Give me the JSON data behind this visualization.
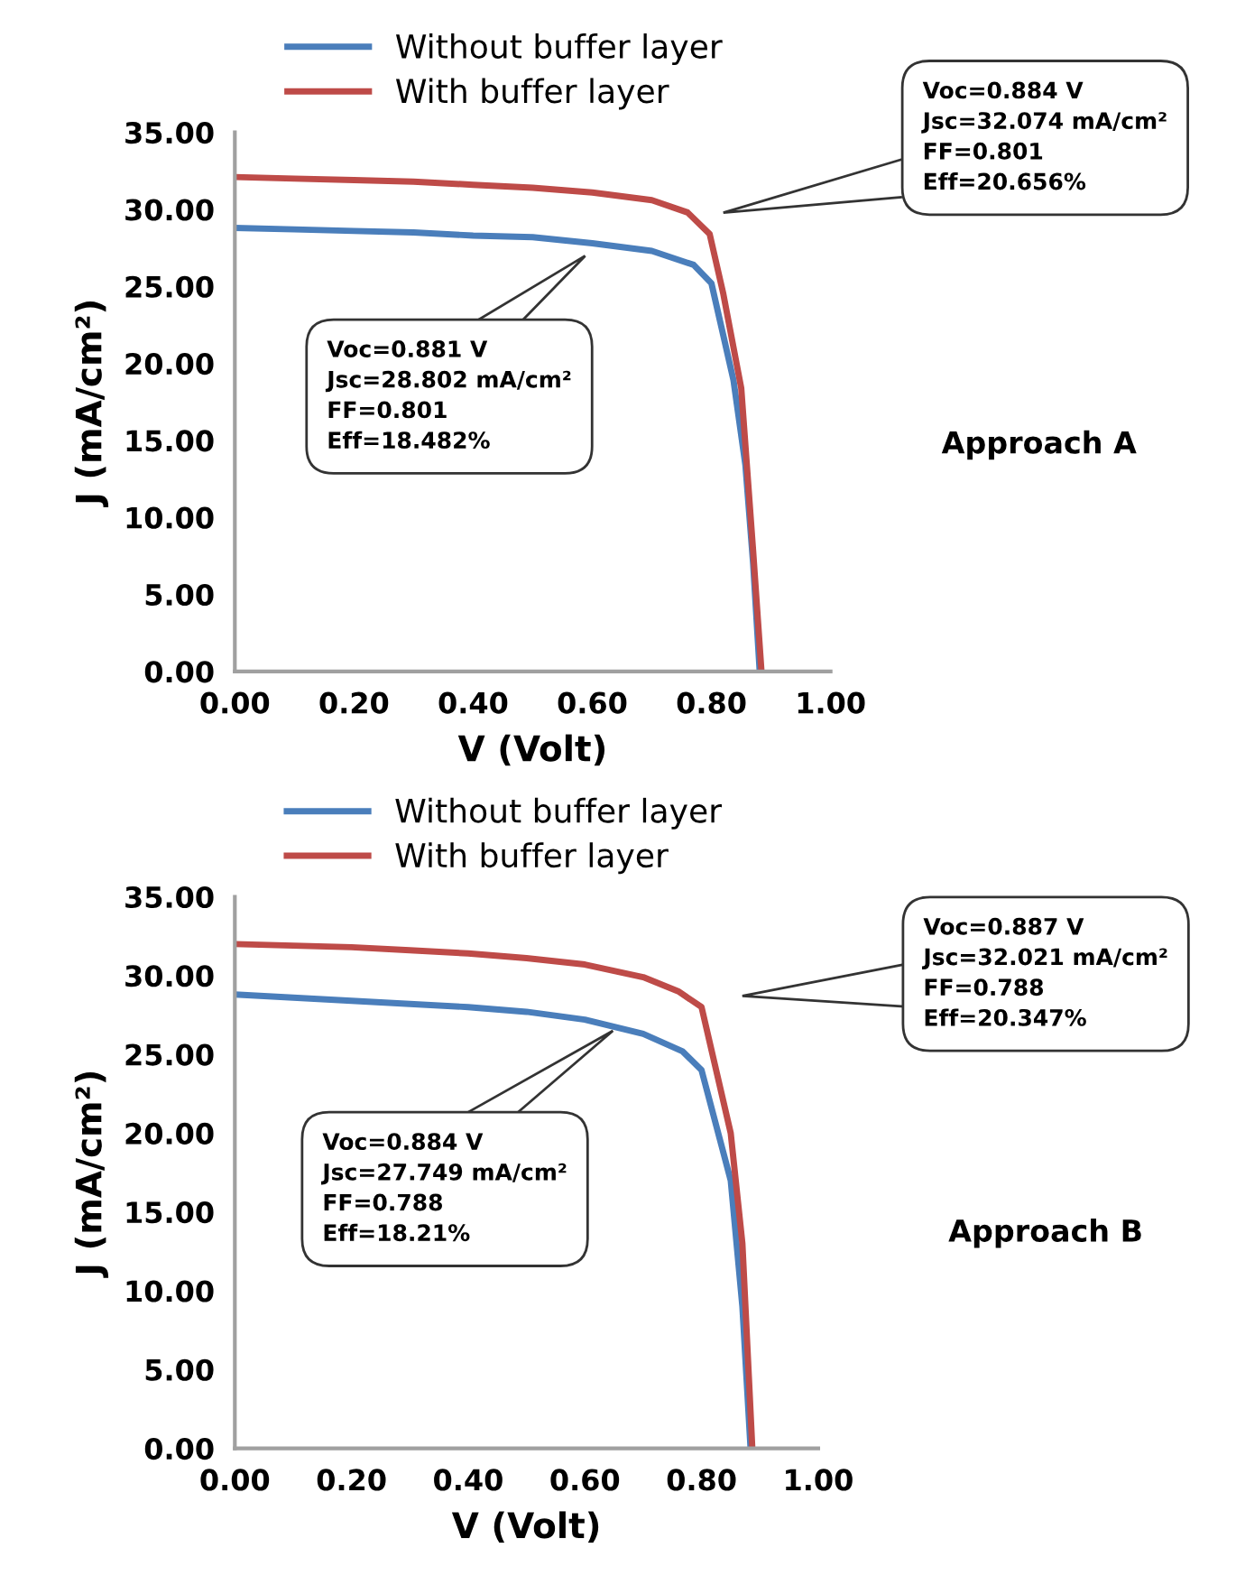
{
  "chart_data": [
    {
      "type": "line",
      "xlabel": "V (Volt)",
      "ylabel": "J (mA/cm²)",
      "legend": "top",
      "grid": false,
      "marker": "none",
      "line_style": "solid",
      "xlim": [
        0,
        1
      ],
      "ylim": [
        0,
        35
      ],
      "xticks": [
        {
          "value": 0,
          "label": "0.00"
        },
        {
          "value": 0.2,
          "label": "0.20"
        },
        {
          "value": 0.4,
          "label": "0.40"
        },
        {
          "value": 0.6,
          "label": "0.60"
        },
        {
          "value": 0.8,
          "label": "0.80"
        },
        {
          "value": 1,
          "label": "1.00"
        }
      ],
      "yticks": [
        {
          "value": 0,
          "label": "0.00"
        },
        {
          "value": 5,
          "label": "5.00"
        },
        {
          "value": 10,
          "label": "10.00"
        },
        {
          "value": 15,
          "label": "15.00"
        },
        {
          "value": 20,
          "label": "20.00"
        },
        {
          "value": 25,
          "label": "25.00"
        },
        {
          "value": 30,
          "label": "30.00"
        },
        {
          "value": 35,
          "label": "35.00"
        }
      ],
      "series": [
        {
          "name": "Without buffer layer",
          "color": "#4a7ebb",
          "x": [
            0,
            0.1,
            0.2,
            0.3,
            0.4,
            0.5,
            0.6,
            0.7,
            0.77,
            0.8,
            0.837,
            0.857,
            0.87,
            0.881
          ],
          "values": [
            28.8,
            28.7,
            28.6,
            28.5,
            28.3,
            28.2,
            27.8,
            27.3,
            26.4,
            25.2,
            18.9,
            13.4,
            7,
            0
          ]
        },
        {
          "name": "With buffer layer",
          "color": "#be4b48",
          "x": [
            0,
            0.1,
            0.2,
            0.3,
            0.4,
            0.5,
            0.6,
            0.7,
            0.76,
            0.797,
            0.82,
            0.85,
            0.87,
            0.884
          ],
          "values": [
            32.1,
            32.0,
            31.9,
            31.8,
            31.6,
            31.4,
            31.1,
            30.6,
            29.8,
            28.4,
            24.5,
            18.4,
            7.8,
            0
          ]
        }
      ],
      "annotations": [
        "Voc=0.881 V\nJsc=28.802 mA/cm²\nFF=0.801\nEff=18.482%",
        "Voc=0.884 V\nJsc=32.074 mA/cm²\nFF=0.801\nEff=20.656%",
        "Approach A"
      ]
    },
    {
      "type": "line",
      "xlabel": "V (Volt)",
      "ylabel": "J (mA/cm²)",
      "legend": "top",
      "grid": false,
      "marker": "none",
      "line_style": "solid",
      "xlim": [
        0,
        1
      ],
      "ylim": [
        0,
        35
      ],
      "xticks": [
        {
          "value": 0,
          "label": "0.00"
        },
        {
          "value": 0.2,
          "label": "0.20"
        },
        {
          "value": 0.4,
          "label": "0.40"
        },
        {
          "value": 0.6,
          "label": "0.60"
        },
        {
          "value": 0.8,
          "label": "0.80"
        },
        {
          "value": 1,
          "label": "1.00"
        }
      ],
      "yticks": [
        {
          "value": 0,
          "label": "0.00"
        },
        {
          "value": 5,
          "label": "5.00"
        },
        {
          "value": 10,
          "label": "10.00"
        },
        {
          "value": 15,
          "label": "15.00"
        },
        {
          "value": 20,
          "label": "20.00"
        },
        {
          "value": 25,
          "label": "25.00"
        },
        {
          "value": 30,
          "label": "30.00"
        },
        {
          "value": 35,
          "label": "35.00"
        }
      ],
      "series": [
        {
          "name": "Without buffer layer",
          "color": "#4a7ebb",
          "x": [
            0,
            0.1,
            0.2,
            0.3,
            0.4,
            0.5,
            0.6,
            0.7,
            0.767,
            0.8,
            0.85,
            0.87,
            0.884
          ],
          "values": [
            28.8,
            28.6,
            28.4,
            28.2,
            28.0,
            27.7,
            27.2,
            26.3,
            25.2,
            24.0,
            17.0,
            9,
            0
          ]
        },
        {
          "name": "With buffer layer",
          "color": "#be4b48",
          "x": [
            0,
            0.1,
            0.2,
            0.3,
            0.4,
            0.5,
            0.6,
            0.7,
            0.76,
            0.8,
            0.85,
            0.87,
            0.887
          ],
          "values": [
            32.0,
            31.9,
            31.8,
            31.6,
            31.4,
            31.1,
            30.7,
            29.9,
            29.0,
            28.0,
            20.0,
            13.0,
            0
          ]
        }
      ],
      "annotations": [
        "Voc=0.884 V\nJsc=27.749 mA/cm²\nFF=0.788\nEff=18.21%",
        "Voc=0.887 V\nJsc=32.021 mA/cm²\nFF=0.788\nEff=20.347%",
        "Approach B"
      ]
    }
  ]
}
